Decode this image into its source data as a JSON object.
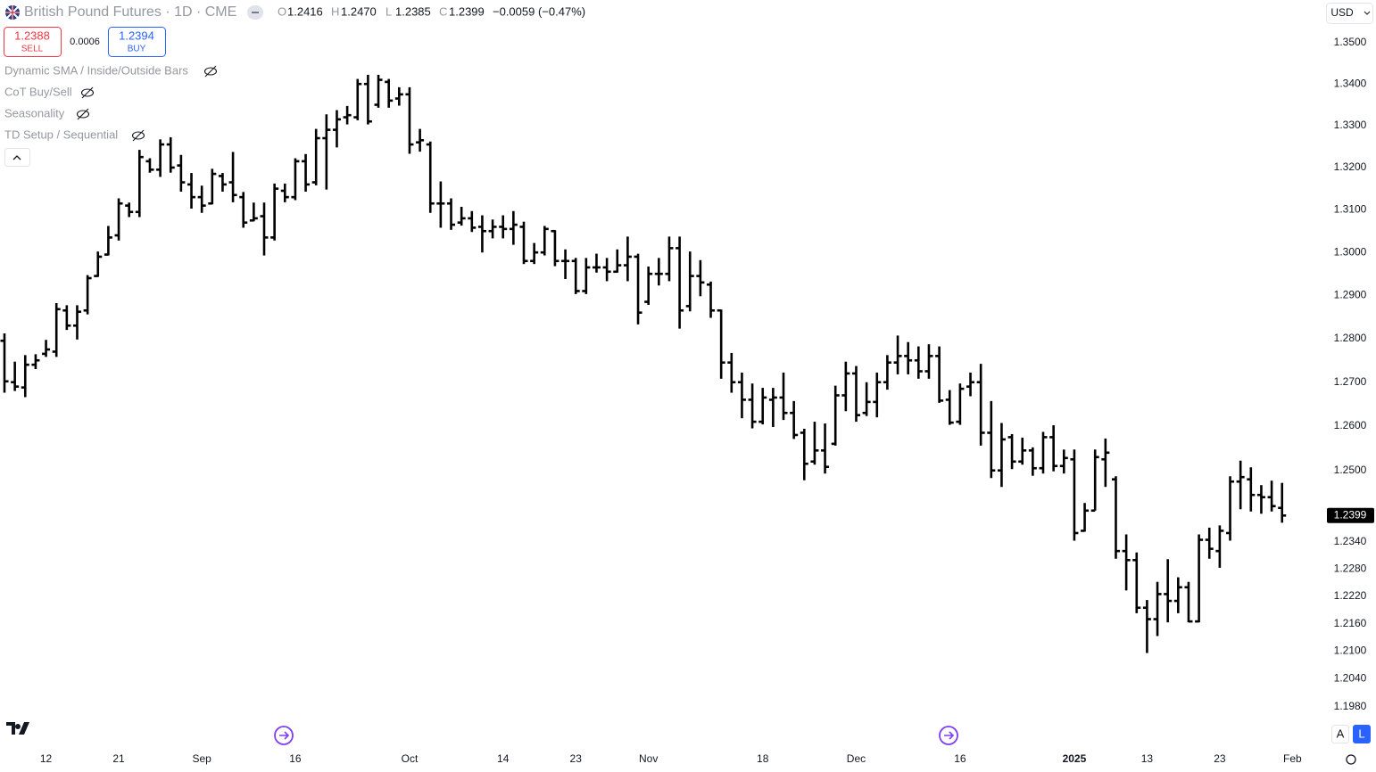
{
  "header": {
    "title": "British Pound Futures · 1D · CME",
    "ohlc": [
      {
        "key": "O",
        "value": "1.2416"
      },
      {
        "key": "H",
        "value": "1.2470"
      },
      {
        "key": "L",
        "value": "1.2385"
      },
      {
        "key": "C",
        "value": "1.2399"
      }
    ],
    "change": "−0.0059 (−0.47%)",
    "sell": {
      "price": "1.2388",
      "label": "SELL"
    },
    "spread": "0.0006",
    "buy": {
      "price": "1.2394",
      "label": "BUY"
    },
    "indicators": [
      "Dynamic SMA / Inside/Outside Bars",
      "CoT Buy/Sell",
      "Seasonality",
      "TD Setup / Sequential"
    ],
    "currency": "USD",
    "scale_buttons": [
      "A",
      "L"
    ]
  },
  "chart_data": {
    "type": "ohlc",
    "color": "#000000",
    "log": true,
    "ylim": [
      1.1897,
      1.3604
    ],
    "yticks": [
      {
        "value": 1.35,
        "label": "1.3500"
      },
      {
        "value": 1.34,
        "label": "1.3400"
      },
      {
        "value": 1.33,
        "label": "1.3300"
      },
      {
        "value": 1.32,
        "label": "1.3200"
      },
      {
        "value": 1.31,
        "label": "1.3100"
      },
      {
        "value": 1.3,
        "label": "1.3000"
      },
      {
        "value": 1.29,
        "label": "1.2900"
      },
      {
        "value": 1.28,
        "label": "1.2800"
      },
      {
        "value": 1.27,
        "label": "1.2700"
      },
      {
        "value": 1.26,
        "label": "1.2600"
      },
      {
        "value": 1.25,
        "label": "1.2500"
      },
      {
        "value": 1.234,
        "label": "1.2340"
      },
      {
        "value": 1.228,
        "label": "1.2280"
      },
      {
        "value": 1.222,
        "label": "1.2220"
      },
      {
        "value": 1.216,
        "label": "1.2160"
      },
      {
        "value": 1.21,
        "label": "1.2100"
      },
      {
        "value": 1.204,
        "label": "1.2040"
      },
      {
        "value": 1.198,
        "label": "1.1980"
      }
    ],
    "categories": [
      null,
      null,
      null,
      null,
      "12",
      null,
      null,
      null,
      null,
      null,
      null,
      "21",
      null,
      null,
      null,
      null,
      null,
      null,
      null,
      "Sep",
      null,
      null,
      null,
      null,
      null,
      null,
      null,
      null,
      "16",
      null,
      null,
      null,
      null,
      null,
      null,
      null,
      null,
      null,
      null,
      "Oct",
      null,
      null,
      null,
      null,
      null,
      null,
      null,
      null,
      "14",
      null,
      null,
      null,
      null,
      null,
      null,
      "23",
      null,
      null,
      null,
      null,
      null,
      null,
      "Nov",
      null,
      null,
      null,
      null,
      null,
      null,
      null,
      null,
      null,
      null,
      "18",
      null,
      null,
      null,
      null,
      null,
      null,
      null,
      null,
      "Dec",
      null,
      null,
      null,
      null,
      null,
      null,
      null,
      null,
      null,
      "16",
      null,
      null,
      null,
      null,
      null,
      null,
      null,
      null,
      null,
      null,
      "2025",
      null,
      null,
      null,
      null,
      null,
      null,
      "13",
      null,
      null,
      null,
      null,
      null,
      null,
      "23",
      null,
      null,
      null,
      null,
      null,
      null,
      "Feb"
    ],
    "open": [
      1.2795,
      1.27,
      1.2688,
      1.274,
      1.2765,
      1.277,
      1.2865,
      1.283,
      1.2865,
      1.2945,
      1.2995,
      1.304,
      1.311,
      1.3095,
      1.3215,
      1.3195,
      1.3255,
      1.3205,
      1.316,
      1.313,
      1.3115,
      1.318,
      1.3165,
      1.313,
      1.3075,
      1.3085,
      1.3035,
      1.3145,
      1.313,
      1.3215,
      1.3165,
      1.327,
      1.329,
      1.332,
      1.332,
      1.34,
      1.335,
      1.3405,
      1.3365,
      1.3375,
      1.326,
      1.3255,
      1.3115,
      1.3115,
      1.307,
      1.308,
      1.306,
      1.305,
      1.306,
      1.3055,
      1.306,
      1.298,
      1.3,
      1.305,
      1.298,
      1.298,
      1.291,
      1.2965,
      1.2965,
      1.2955,
      1.297,
      1.299,
      1.2885,
      1.295,
      1.295,
      1.301,
      1.2875,
      1.2945,
      1.2925,
      1.2865,
      1.2745,
      1.27,
      1.266,
      1.261,
      1.266,
      1.2665,
      1.263,
      1.2585,
      1.252,
      1.2545,
      1.256,
      1.267,
      1.272,
      1.263,
      1.2655,
      1.27,
      1.2745,
      1.276,
      1.275,
      1.2725,
      1.276,
      1.266,
      1.261,
      1.269,
      1.27,
      1.2585,
      1.25,
      1.2575,
      1.252,
      1.2545,
      1.2505,
      1.2575,
      1.251,
      1.2525,
      1.2365,
      1.241,
      1.2525,
      1.248,
      1.232,
      1.23,
      1.2195,
      1.217,
      1.2225,
      1.221,
      1.224,
      1.2165,
      1.2345,
      1.232,
      1.236,
      1.2475,
      1.248,
      1.2445,
      1.244,
      1.2416,
      null
    ],
    "high": [
      1.281,
      1.2745,
      1.276,
      1.2762,
      1.2795,
      1.288,
      1.2875,
      1.2875,
      1.2945,
      1.3,
      1.306,
      1.3125,
      1.3115,
      1.324,
      1.322,
      1.3265,
      1.327,
      1.3228,
      1.3185,
      1.3155,
      1.3195,
      1.3185,
      1.3235,
      1.314,
      1.3115,
      1.3115,
      1.316,
      1.316,
      1.322,
      1.323,
      1.329,
      1.3325,
      1.3335,
      1.3345,
      1.341,
      1.342,
      1.342,
      1.341,
      1.339,
      1.339,
      1.329,
      1.326,
      1.3165,
      1.3125,
      1.3105,
      1.3095,
      1.3085,
      1.3075,
      1.3085,
      1.3095,
      1.307,
      1.302,
      1.306,
      1.305,
      1.3005,
      1.2985,
      1.2985,
      1.2995,
      1.2985,
      1.3005,
      1.3035,
      1.2995,
      1.2965,
      1.2985,
      1.3035,
      1.3035,
      1.3,
      1.298,
      1.293,
      1.2865,
      1.2765,
      1.272,
      1.2695,
      1.2685,
      1.2685,
      1.272,
      1.2655,
      1.2592,
      1.2608,
      1.2604,
      1.269,
      1.2745,
      1.2735,
      1.2698,
      1.272,
      1.276,
      1.2805,
      1.279,
      1.278,
      1.2785,
      1.278,
      1.268,
      1.2695,
      1.272,
      1.274,
      1.2655,
      1.2605,
      1.258,
      1.2572,
      1.255,
      1.2585,
      1.26,
      1.2545,
      1.2545,
      1.2425,
      1.2545,
      1.257,
      1.2485,
      1.2355,
      1.2315,
      1.221,
      1.225,
      1.23,
      1.226,
      1.225,
      1.2355,
      1.237,
      1.2375,
      1.2485,
      1.252,
      1.2505,
      1.2465,
      1.2475,
      1.247,
      null
    ],
    "low": [
      1.2678,
      1.2682,
      1.2668,
      1.2732,
      1.276,
      1.276,
      1.2822,
      1.28,
      1.2858,
      1.2945,
      1.2995,
      1.303,
      1.3085,
      1.3085,
      1.319,
      1.318,
      1.319,
      1.3145,
      1.3105,
      1.3095,
      1.3115,
      1.3145,
      1.312,
      1.306,
      1.3075,
      1.2995,
      1.303,
      1.312,
      1.3125,
      1.3145,
      1.316,
      1.315,
      1.325,
      1.3305,
      1.3315,
      1.3305,
      1.3345,
      1.3345,
      1.335,
      1.3235,
      1.324,
      1.3095,
      1.306,
      1.3055,
      1.3065,
      1.305,
      1.3002,
      1.3035,
      1.3035,
      1.302,
      1.2975,
      1.2975,
      1.2995,
      1.297,
      1.294,
      1.2905,
      1.2905,
      1.2955,
      1.2935,
      1.2955,
      1.2935,
      1.2835,
      1.288,
      1.2925,
      1.2935,
      1.2825,
      1.2865,
      1.29,
      1.285,
      1.271,
      1.2678,
      1.262,
      1.2597,
      1.2606,
      1.26,
      1.2616,
      1.2573,
      1.248,
      1.2515,
      1.2495,
      1.2558,
      1.2636,
      1.2612,
      1.2625,
      1.2622,
      1.2685,
      1.272,
      1.272,
      1.271,
      1.271,
      1.2655,
      1.2605,
      1.2605,
      1.267,
      1.2558,
      1.2485,
      1.2465,
      1.2505,
      1.2515,
      1.249,
      1.2495,
      1.25,
      1.2495,
      1.2345,
      1.2365,
      1.2412,
      1.2465,
      1.2305,
      1.2235,
      1.2185,
      1.2098,
      1.2135,
      1.2165,
      1.2185,
      1.2165,
      1.2165,
      1.2305,
      1.2285,
      1.2345,
      1.2415,
      1.241,
      1.2405,
      1.241,
      1.2385,
      null
    ],
    "close": [
      1.2702,
      1.269,
      1.274,
      1.275,
      1.2775,
      1.2868,
      1.283,
      1.2862,
      1.294,
      1.299,
      1.3035,
      1.3115,
      1.3095,
      1.3225,
      1.3195,
      1.3255,
      1.32,
      1.3165,
      1.313,
      1.311,
      1.3185,
      1.316,
      1.3135,
      1.307,
      1.308,
      1.3035,
      1.315,
      1.313,
      1.3215,
      1.316,
      1.327,
      1.329,
      1.3315,
      1.3325,
      1.34,
      1.331,
      1.341,
      1.336,
      1.3375,
      1.3255,
      1.3265,
      1.3115,
      1.3115,
      1.3065,
      1.308,
      1.3058,
      1.305,
      1.306,
      1.3055,
      1.3065,
      1.298,
      1.3,
      1.3055,
      1.298,
      1.298,
      1.291,
      1.2965,
      1.2965,
      1.2955,
      1.297,
      1.299,
      1.286,
      1.295,
      1.295,
      1.301,
      1.2865,
      1.2945,
      1.293,
      1.2865,
      1.2745,
      1.27,
      1.266,
      1.261,
      1.2665,
      1.2665,
      1.263,
      1.258,
      1.2515,
      1.2545,
      1.2508,
      1.267,
      1.272,
      1.2625,
      1.2655,
      1.27,
      1.2745,
      1.276,
      1.275,
      1.2725,
      1.276,
      1.2658,
      1.2608,
      1.2685,
      1.27,
      1.2585,
      1.25,
      1.257,
      1.252,
      1.2545,
      1.2505,
      1.2575,
      1.251,
      1.2528,
      1.236,
      1.241,
      1.253,
      1.254,
      1.232,
      1.23,
      1.2195,
      1.217,
      1.2225,
      1.221,
      1.224,
      1.2165,
      1.2345,
      1.2325,
      1.2365,
      1.2475,
      1.2485,
      1.2445,
      1.244,
      1.242,
      1.2399,
      null
    ]
  }
}
